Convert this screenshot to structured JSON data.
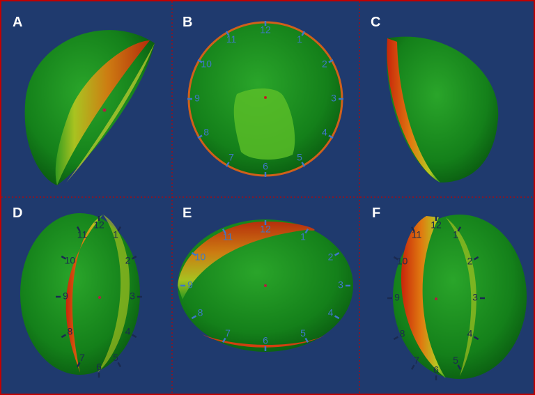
{
  "panels": [
    {
      "label": "A"
    },
    {
      "label": "B",
      "clock": [
        "1",
        "2",
        "3",
        "4",
        "5",
        "6",
        "7",
        "8",
        "9",
        "10",
        "11",
        "12"
      ]
    },
    {
      "label": "C"
    },
    {
      "label": "D",
      "clock": [
        "1",
        "2",
        "3",
        "4",
        "5",
        "6",
        "7",
        "8",
        "9",
        "10",
        "11",
        "12"
      ]
    },
    {
      "label": "E",
      "clock": [
        "1",
        "2",
        "3",
        "4",
        "5",
        "6",
        "7",
        "8",
        "9",
        "10",
        "11",
        "12"
      ]
    },
    {
      "label": "F",
      "clock": [
        "1",
        "2",
        "3",
        "4",
        "5",
        "6",
        "7",
        "8",
        "9",
        "10",
        "11",
        "12"
      ]
    }
  ]
}
